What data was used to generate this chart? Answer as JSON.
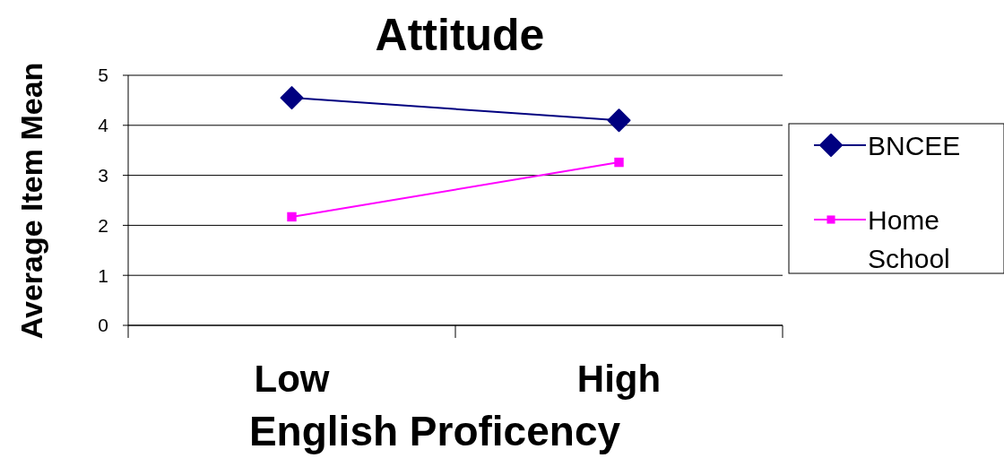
{
  "chart_data": {
    "type": "line",
    "title": "Attitude",
    "xlabel": "English Proficency",
    "ylabel": "Average Item Mean",
    "categories": [
      "Low",
      "High"
    ],
    "series": [
      {
        "name": "BNCEE",
        "color": "#000080",
        "marker": "diamond",
        "values": [
          4.55,
          4.1
        ]
      },
      {
        "name": "Home School",
        "color": "#ff00ff",
        "marker": "square",
        "values": [
          2.17,
          3.26
        ]
      }
    ],
    "ylim": [
      0,
      5
    ],
    "yticks": [
      0,
      1,
      2,
      3,
      4,
      5
    ],
    "grid": "y",
    "legend": "right"
  }
}
